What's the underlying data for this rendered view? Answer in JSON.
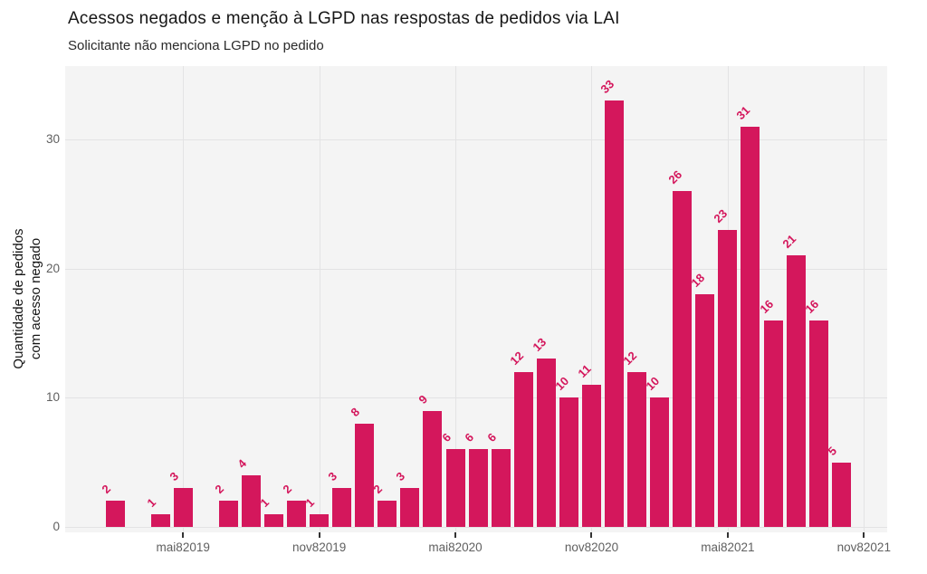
{
  "title": "Acessos negados e menção à LGPD nas respostas de pedidos via LAI",
  "subtitle": "Solicitante não menciona LGPD no pedido",
  "y_axis": {
    "title_line1": "Quantidade de pedidos",
    "title_line2": "com acesso negado",
    "tick_values": [
      0,
      10,
      20,
      30
    ]
  },
  "x_axis": {
    "tick_labels": [
      "mai82019",
      "nov82019",
      "mai82020",
      "nov82020",
      "mai82021",
      "nov82021"
    ],
    "tick_month_indices": [
      3,
      9,
      15,
      21,
      27,
      33
    ]
  },
  "chart_data": {
    "type": "bar",
    "title": "Acessos negados e menção à LGPD nas respostas de pedidos via LAI",
    "subtitle": "Solicitante não menciona LGPD no pedido",
    "ylabel": "Quantidade de pedidos com acesso negado",
    "xlabel": "",
    "ylim": [
      0,
      36
    ],
    "grid": "major gridlines only; horizontal at 0/10/20/30, vertical at labeled date ticks",
    "legend": "none",
    "x": [
      "fev/2019",
      "mar/2019",
      "abr/2019",
      "mai/2019",
      "jun/2019",
      "jul/2019",
      "ago/2019",
      "set/2019",
      "out/2019",
      "nov/2019",
      "dez/2019",
      "jan/2020",
      "fev/2020",
      "mar/2020",
      "abr/2020",
      "mai/2020",
      "jun/2020",
      "jul/2020",
      "ago/2020",
      "set/2020",
      "out/2020",
      "nov/2020",
      "dez/2020",
      "jan/2021",
      "fev/2021",
      "mar/2021",
      "abr/2021",
      "mai/2021",
      "jun/2021",
      "jul/2021",
      "ago/2021",
      "set/2021",
      "out/2021"
    ],
    "values": [
      2,
      0,
      1,
      3,
      0,
      2,
      4,
      1,
      2,
      1,
      3,
      8,
      2,
      3,
      9,
      6,
      6,
      6,
      12,
      13,
      10,
      11,
      33,
      12,
      10,
      26,
      18,
      23,
      31,
      16,
      21,
      16,
      5
    ],
    "value_labels_shown_above_bars": true,
    "value_label_rotation_deg": -45,
    "bar_color": "#d4175c",
    "label_color": "#d4175c",
    "panel_background": "#f4f4f4",
    "gridline_color": "#e3e3e4",
    "axis_text_color": "#606060"
  }
}
